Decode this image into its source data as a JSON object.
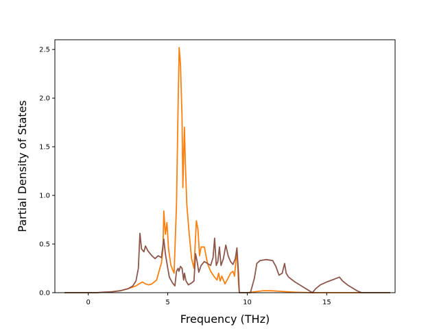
{
  "chart_data": {
    "type": "line",
    "title": "",
    "xlabel": "Frequency (THz)",
    "ylabel": "Partial Density of States",
    "xlim": [
      -2.1,
      19.3
    ],
    "ylim": [
      0,
      2.6
    ],
    "xticks": [
      0,
      5,
      10,
      15
    ],
    "xtick_labels": [
      "0",
      "5",
      "10",
      "15"
    ],
    "yticks": [
      0,
      0.5,
      1.0,
      1.5,
      2.0,
      2.5
    ],
    "ytick_labels": [
      "0.0",
      "0.5",
      "1.0",
      "1.5",
      "2.0",
      "2.5"
    ],
    "grid": false,
    "legend": "none",
    "series": [
      {
        "color": "#ff7f0e",
        "points": [
          [
            -1.5,
            0
          ],
          [
            0,
            0
          ],
          [
            0.5,
            0
          ],
          [
            1,
            0.005
          ],
          [
            1.5,
            0.01
          ],
          [
            2,
            0.02
          ],
          [
            2.5,
            0.04
          ],
          [
            3,
            0.07
          ],
          [
            3.2,
            0.09
          ],
          [
            3.4,
            0.11
          ],
          [
            3.6,
            0.09
          ],
          [
            3.8,
            0.08
          ],
          [
            4,
            0.09
          ],
          [
            4.3,
            0.13
          ],
          [
            4.5,
            0.25
          ],
          [
            4.6,
            0.3
          ],
          [
            4.7,
            0.45
          ],
          [
            4.75,
            0.84
          ],
          [
            4.85,
            0.6
          ],
          [
            4.95,
            0.72
          ],
          [
            5.05,
            0.45
          ],
          [
            5.2,
            0.28
          ],
          [
            5.4,
            0.2
          ],
          [
            5.55,
            0.9
          ],
          [
            5.65,
            1.9
          ],
          [
            5.72,
            2.52
          ],
          [
            5.8,
            2.35
          ],
          [
            5.9,
            1.8
          ],
          [
            5.95,
            1.08
          ],
          [
            6.0,
            1.4
          ],
          [
            6.05,
            1.7
          ],
          [
            6.1,
            1.35
          ],
          [
            6.2,
            0.9
          ],
          [
            6.35,
            0.6
          ],
          [
            6.5,
            0.35
          ],
          [
            6.65,
            0.25
          ],
          [
            6.8,
            0.74
          ],
          [
            6.9,
            0.65
          ],
          [
            7.0,
            0.38
          ],
          [
            7.1,
            0.47
          ],
          [
            7.3,
            0.47
          ],
          [
            7.5,
            0.3
          ],
          [
            7.7,
            0.22
          ],
          [
            7.9,
            0.17
          ],
          [
            8.1,
            0.13
          ],
          [
            8.2,
            0.2
          ],
          [
            8.3,
            0.12
          ],
          [
            8.4,
            0.17
          ],
          [
            8.6,
            0.09
          ],
          [
            8.8,
            0.15
          ],
          [
            8.95,
            0.2
          ],
          [
            9.1,
            0.22
          ],
          [
            9.2,
            0.17
          ],
          [
            9.35,
            0.44
          ],
          [
            9.45,
            0.1
          ],
          [
            9.5,
            0
          ],
          [
            10,
            0
          ],
          [
            10.5,
            0.01
          ],
          [
            11,
            0.02
          ],
          [
            11.5,
            0.02
          ],
          [
            12,
            0.015
          ],
          [
            12.5,
            0.01
          ],
          [
            13,
            0.005
          ],
          [
            14,
            0
          ],
          [
            19,
            0
          ]
        ]
      },
      {
        "color": "#8c564b",
        "points": [
          [
            -1.5,
            0
          ],
          [
            0,
            0
          ],
          [
            0.5,
            0
          ],
          [
            1,
            0.005
          ],
          [
            1.5,
            0.01
          ],
          [
            2,
            0.02
          ],
          [
            2.5,
            0.04
          ],
          [
            2.8,
            0.07
          ],
          [
            3.0,
            0.12
          ],
          [
            3.15,
            0.25
          ],
          [
            3.25,
            0.61
          ],
          [
            3.35,
            0.45
          ],
          [
            3.5,
            0.42
          ],
          [
            3.6,
            0.48
          ],
          [
            3.75,
            0.43
          ],
          [
            4,
            0.38
          ],
          [
            4.2,
            0.35
          ],
          [
            4.4,
            0.38
          ],
          [
            4.6,
            0.36
          ],
          [
            4.75,
            0.55
          ],
          [
            4.85,
            0.4
          ],
          [
            5.0,
            0.25
          ],
          [
            5.1,
            0.16
          ],
          [
            5.3,
            0.1
          ],
          [
            5.45,
            0.07
          ],
          [
            5.55,
            0.22
          ],
          [
            5.65,
            0.25
          ],
          [
            5.7,
            0.22
          ],
          [
            5.8,
            0.27
          ],
          [
            5.9,
            0.25
          ],
          [
            6.0,
            0.13
          ],
          [
            6.05,
            0.2
          ],
          [
            6.15,
            0.12
          ],
          [
            6.3,
            0.08
          ],
          [
            6.5,
            0.1
          ],
          [
            6.65,
            0.12
          ],
          [
            6.75,
            0.4
          ],
          [
            6.85,
            0.32
          ],
          [
            6.95,
            0.21
          ],
          [
            7.1,
            0.28
          ],
          [
            7.3,
            0.32
          ],
          [
            7.5,
            0.3
          ],
          [
            7.7,
            0.28
          ],
          [
            7.85,
            0.36
          ],
          [
            7.95,
            0.56
          ],
          [
            8.05,
            0.28
          ],
          [
            8.15,
            0.32
          ],
          [
            8.25,
            0.47
          ],
          [
            8.35,
            0.28
          ],
          [
            8.5,
            0.35
          ],
          [
            8.65,
            0.49
          ],
          [
            8.8,
            0.38
          ],
          [
            8.95,
            0.32
          ],
          [
            9.1,
            0.29
          ],
          [
            9.25,
            0.35
          ],
          [
            9.35,
            0.46
          ],
          [
            9.45,
            0.2
          ],
          [
            9.5,
            0
          ],
          [
            10.2,
            0
          ],
          [
            10.45,
            0.15
          ],
          [
            10.6,
            0.3
          ],
          [
            10.8,
            0.33
          ],
          [
            11.2,
            0.34
          ],
          [
            11.6,
            0.33
          ],
          [
            11.8,
            0.27
          ],
          [
            12.0,
            0.18
          ],
          [
            12.2,
            0.2
          ],
          [
            12.35,
            0.3
          ],
          [
            12.45,
            0.2
          ],
          [
            12.6,
            0.16
          ],
          [
            13,
            0.11
          ],
          [
            13.5,
            0.06
          ],
          [
            13.9,
            0.02
          ],
          [
            14.1,
            0
          ],
          [
            14.3,
            0.04
          ],
          [
            14.6,
            0.08
          ],
          [
            15,
            0.11
          ],
          [
            15.5,
            0.14
          ],
          [
            15.8,
            0.16
          ],
          [
            16,
            0.12
          ],
          [
            16.3,
            0.08
          ],
          [
            16.6,
            0.05
          ],
          [
            16.9,
            0.02
          ],
          [
            17.2,
            0
          ],
          [
            19,
            0
          ]
        ]
      }
    ]
  }
}
